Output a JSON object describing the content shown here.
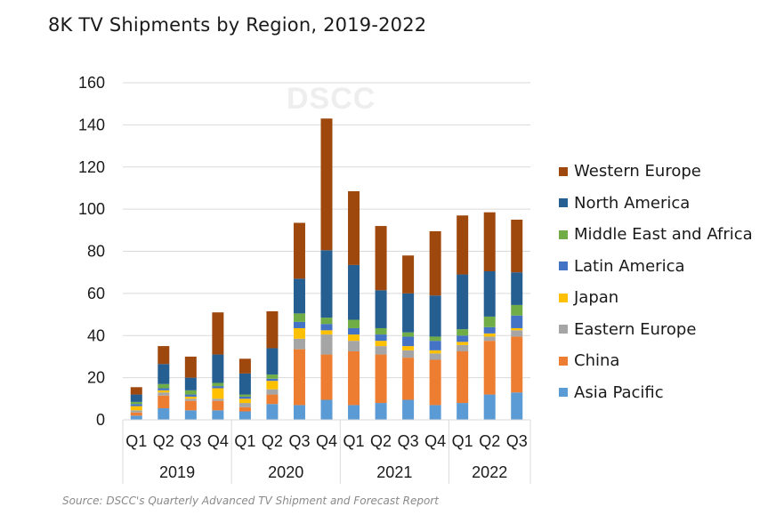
{
  "title": "8K TV Shipments by Region, 2019-2022",
  "watermark": "DSCC",
  "source": "Source: DSCC's Quarterly Advanced TV Shipment and Forecast Report",
  "chart_data": {
    "type": "bar",
    "stacked": true,
    "title": "8K TV Shipments by Region, 2019-2022",
    "xlabel": "",
    "ylabel": "",
    "ylim": [
      0,
      160
    ],
    "yticks": [
      0,
      20,
      40,
      60,
      80,
      100,
      120,
      140,
      160
    ],
    "grid": true,
    "legend_position": "right",
    "categories": [
      "Q1",
      "Q2",
      "Q3",
      "Q4",
      "Q1",
      "Q2",
      "Q3",
      "Q4",
      "Q1",
      "Q2",
      "Q3",
      "Q4",
      "Q1",
      "Q2",
      "Q3"
    ],
    "groups": [
      {
        "label": "2019",
        "count": 4
      },
      {
        "label": "2020",
        "count": 4
      },
      {
        "label": "2021",
        "count": 4
      },
      {
        "label": "2022",
        "count": 3
      }
    ],
    "series": [
      {
        "name": "Asia Pacific",
        "color": "#5b9bd5",
        "values": [
          2,
          5.5,
          4.5,
          4.5,
          4,
          7.5,
          7,
          9.5,
          7,
          8,
          9.5,
          7,
          8,
          12,
          13
        ]
      },
      {
        "name": "China",
        "color": "#ed7d31",
        "values": [
          1.5,
          6,
          4.5,
          4.5,
          2,
          4.5,
          26.5,
          21.5,
          25.5,
          23,
          20,
          21.5,
          24.5,
          25.5,
          26.5
        ]
      },
      {
        "name": "Eastern Europe",
        "color": "#a5a5a5",
        "values": [
          1,
          1.5,
          1,
          1,
          2,
          2.5,
          5,
          9.5,
          5,
          4,
          3.5,
          3,
          3,
          2,
          3
        ]
      },
      {
        "name": "Japan",
        "color": "#ffc000",
        "values": [
          2,
          1,
          1,
          5,
          2,
          4,
          5,
          2,
          3,
          2.5,
          2,
          1.5,
          1.5,
          1.5,
          1
        ]
      },
      {
        "name": "Latin America",
        "color": "#4472c4",
        "values": [
          1,
          1,
          1,
          1,
          1,
          1,
          3,
          3,
          3,
          3,
          4.5,
          4.5,
          3,
          3,
          6
        ]
      },
      {
        "name": "Middle East and Africa",
        "color": "#70ad47",
        "values": [
          1,
          2,
          2,
          1.5,
          1,
          2,
          4,
          3,
          4,
          3,
          2,
          2,
          3,
          5,
          5
        ]
      },
      {
        "name": "North America",
        "color": "#255e91",
        "values": [
          3.5,
          9.5,
          6,
          13.5,
          10,
          12.5,
          16.5,
          32,
          26,
          18,
          18.5,
          19.5,
          26,
          21.5,
          15.5
        ]
      },
      {
        "name": "Western Europe",
        "color": "#9e480e",
        "values": [
          3.5,
          8.5,
          10,
          20,
          7,
          17.5,
          26.5,
          62.5,
          35,
          30.5,
          18,
          30.5,
          28,
          28,
          25
        ]
      }
    ]
  }
}
